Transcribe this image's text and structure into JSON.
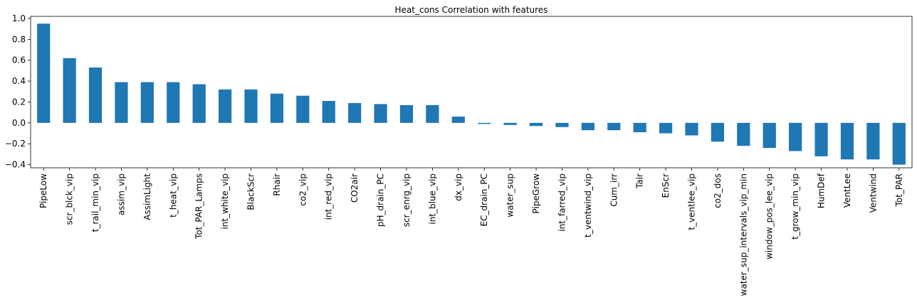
{
  "chart_data": {
    "type": "bar",
    "title": "Heat_cons Correlation with features",
    "xlabel": "",
    "ylabel": "",
    "ylim": [
      -0.43,
      1.02
    ],
    "yticks": [
      1.0,
      0.8,
      0.6,
      0.4,
      0.2,
      0.0,
      -0.2,
      -0.4
    ],
    "ytick_labels": [
      "1.0",
      "0.8",
      "0.6",
      "0.4",
      "0.2",
      "0.0",
      "−0.2",
      "−0.4"
    ],
    "bar_color": "#1f77b4",
    "grid": false,
    "legend": "none",
    "categories": [
      "PipeLow",
      "scr_blck_vip",
      "t_rail_min_vip",
      "assim_vip",
      "AssimLight",
      "t_heat_vip",
      "Tot_PAR_Lamps",
      "int_white_vip",
      "BlackScr",
      "Rhair",
      "co2_vip",
      "int_red_vip",
      "CO2air",
      "pH_drain_PC",
      "scr_enrg_vip",
      "int_blue_vip",
      "dx_vip",
      "EC_drain_PC",
      "water_sup",
      "PipeGrow",
      "int_farred_vip",
      "t_ventwind_vip",
      "Cum_irr",
      "Tair",
      "EnScr",
      "t_ventlee_vip",
      "co2_dos",
      "water_sup_intervals_vip_min",
      "window_pos_lee_vip",
      "t_grow_min_vip",
      "HumDef",
      "VentLee",
      "Ventwind",
      "Tot_PAR"
    ],
    "values": [
      0.95,
      0.62,
      0.53,
      0.39,
      0.39,
      0.39,
      0.37,
      0.32,
      0.32,
      0.28,
      0.26,
      0.21,
      0.19,
      0.18,
      0.17,
      0.17,
      0.06,
      -0.01,
      -0.02,
      -0.03,
      -0.04,
      -0.07,
      -0.07,
      -0.09,
      -0.1,
      -0.12,
      -0.18,
      -0.22,
      -0.24,
      -0.27,
      -0.32,
      -0.35,
      -0.35,
      -0.4
    ]
  }
}
